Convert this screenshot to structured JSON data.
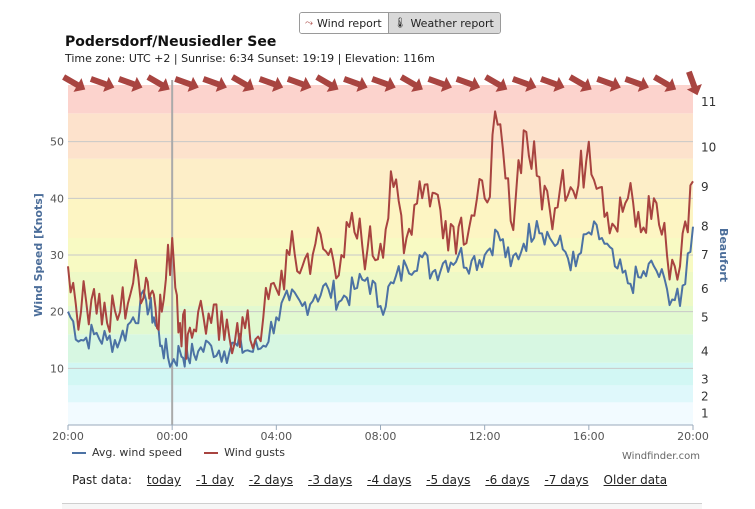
{
  "tabs": [
    {
      "label": "Wind report",
      "icon": "chart-line-icon",
      "active": true
    },
    {
      "label": "Weather report",
      "icon": "thermometer-icon",
      "active": false
    }
  ],
  "header": {
    "title": "Podersdorf/Neusiedler See",
    "subtitle": "Time zone: UTC +2 | Sunrise: 6:34 Sunset: 19:19 | Elevation: 116m"
  },
  "chart_data": {
    "type": "line",
    "ylabel": "Wind Speed [Knots]",
    "y2label": "Beaufort",
    "ylim": [
      0,
      60
    ],
    "yticks": [
      "10",
      "20",
      "30",
      "40",
      "50"
    ],
    "xtick_labels": [
      "20:00",
      "00:00",
      "04:00",
      "08:00",
      "12:00",
      "16:00",
      "20:00"
    ],
    "x_range_hours": [
      0,
      24
    ],
    "beaufort_ticks": [
      {
        "label": "1",
        "knots": 2
      },
      {
        "label": "2",
        "knots": 5
      },
      {
        "label": "3",
        "knots": 8
      },
      {
        "label": "4",
        "knots": 13
      },
      {
        "label": "5",
        "knots": 19
      },
      {
        "label": "6",
        "knots": 24
      },
      {
        "label": "7",
        "knots": 30
      },
      {
        "label": "8",
        "knots": 35
      },
      {
        "label": "9",
        "knots": 42
      },
      {
        "label": "10",
        "knots": 49
      },
      {
        "label": "11",
        "knots": 57
      }
    ],
    "marker_hour": 4,
    "grid": true,
    "legend_position": "bottom-left",
    "series": [
      {
        "name": "Avg. wind speed",
        "color": "#4c72a4",
        "x": [
          0,
          0.5,
          1,
          1.5,
          2,
          2.5,
          3,
          3.3,
          3.6,
          4,
          4.3,
          4.6,
          5,
          5.5,
          6,
          6.5,
          7,
          7.5,
          8,
          8.5,
          9,
          9.5,
          10,
          10.5,
          11,
          11.5,
          12,
          12.5,
          13,
          13.5,
          14,
          14.5,
          15,
          15.5,
          16,
          16.5,
          17,
          17.5,
          18,
          18.5,
          19,
          19.5,
          20,
          20.5,
          21,
          21.5,
          22,
          22.5,
          23,
          23.5,
          24
        ],
        "values": [
          20,
          15,
          16,
          15,
          15,
          19,
          22,
          19,
          14,
          11,
          13,
          12,
          13,
          14,
          13,
          14,
          13,
          14,
          19,
          22,
          21,
          23,
          24,
          22,
          24,
          26,
          21,
          25,
          28,
          30,
          27,
          29,
          30,
          29,
          30,
          34,
          28,
          32,
          36,
          33,
          31,
          28,
          34,
          33,
          28,
          25,
          26,
          28,
          24,
          21,
          35
        ]
      },
      {
        "name": "Wind gusts",
        "color": "#a84440",
        "x": [
          0,
          0.5,
          1,
          1.5,
          2,
          2.5,
          3,
          3.3,
          3.6,
          4,
          4.3,
          4.6,
          5,
          5.5,
          6,
          6.5,
          7,
          7.5,
          8,
          8.5,
          9,
          9.5,
          10,
          10.5,
          11,
          11.5,
          12,
          12.5,
          13,
          13.5,
          14,
          14.5,
          15,
          15.5,
          16,
          16.5,
          17,
          17.5,
          18,
          18.5,
          19,
          19.5,
          20,
          20.5,
          21,
          21.5,
          22,
          22.5,
          23,
          23.5,
          24
        ],
        "values": [
          28,
          20,
          24,
          18,
          20,
          25,
          26,
          23,
          20,
          33,
          18,
          16,
          20,
          18,
          15,
          18,
          15,
          19,
          24,
          30,
          28,
          32,
          30,
          30,
          34,
          31,
          32,
          42,
          33,
          43,
          41,
          36,
          35,
          37,
          40,
          53,
          36,
          52,
          44,
          38,
          45,
          40,
          50,
          42,
          35,
          40,
          34,
          40,
          30,
          28,
          43
        ]
      }
    ],
    "arrow_count": 23
  },
  "footer": {
    "credit": "Windfinder.com",
    "past_label": "Past data:",
    "past_links": [
      "today",
      "-1 day",
      "-2 days",
      "-3 days",
      "-4 days",
      "-5 days",
      "-6 days",
      "-7 days",
      "Older data"
    ]
  }
}
